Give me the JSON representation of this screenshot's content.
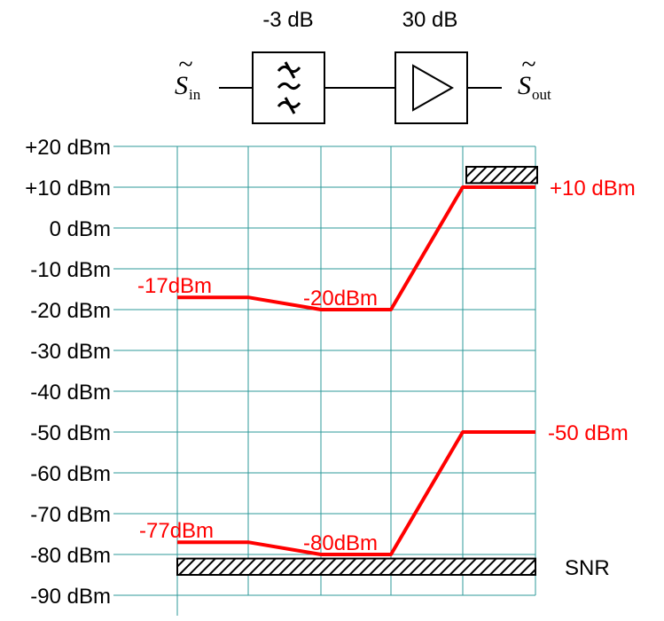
{
  "blocks": {
    "filter_gain_label": "-3 dB",
    "amplifier_gain_label": "30 dB",
    "input_signal_label": "S",
    "input_signal_sub": "in",
    "output_signal_label": "S",
    "output_signal_sub": "out",
    "tilde": "~"
  },
  "chart_data": {
    "type": "line",
    "y_unit": "dBm",
    "ylim": [
      -90,
      20
    ],
    "y_tick_labels": [
      "+20 dBm",
      "+10 dBm",
      "0 dBm",
      "-10 dBm",
      "-20 dBm",
      "-30 dBm",
      "-40 dBm",
      "-50 dBm",
      "-60 dBm",
      "-70 dBm",
      "-80 dBm",
      "-90 dBm"
    ],
    "y_tick_values": [
      20,
      10,
      0,
      -10,
      -20,
      -30,
      -40,
      -50,
      -60,
      -70,
      -80,
      -90
    ],
    "x_stages": [
      0,
      1,
      2,
      3,
      4,
      5
    ],
    "series": [
      {
        "values": [
          -17,
          -17,
          -20,
          -20,
          10,
          10
        ],
        "color": "#ff0000"
      },
      {
        "values": [
          -77,
          -77,
          -80,
          -80,
          -50,
          -50
        ],
        "color": "#ff0000"
      }
    ],
    "annotations": [
      {
        "text": "-17dBm",
        "value": -17
      },
      {
        "text": "-20dBm",
        "value": -20
      },
      {
        "text": "+10 dBm",
        "value": 10
      },
      {
        "text": "-77dBm",
        "value": -77
      },
      {
        "text": "-80dBm",
        "value": -80
      },
      {
        "text": "-50 dBm",
        "value": -50
      }
    ],
    "hatched_bands": [
      {
        "name": "overload",
        "from": 11,
        "to": 15
      },
      {
        "name": "noise-floor",
        "from": -85,
        "to": -81
      }
    ],
    "band_label": "SNR",
    "grid": true,
    "grid_color": "#2e9a9a"
  }
}
